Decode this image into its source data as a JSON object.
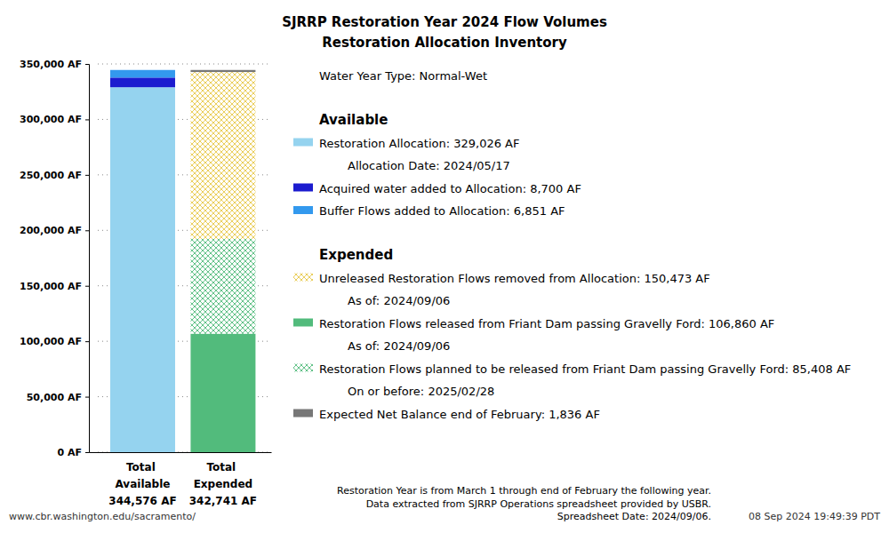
{
  "chart_data": {
    "type": "bar",
    "stacked": true,
    "grid": true,
    "title": "SJRRP Restoration Year 2024 Flow Volumes",
    "subtitle": "Restoration Allocation Inventory",
    "water_year_type": "Water Year Type: Normal-Wet",
    "categories": [
      "Total Available",
      "Total Expended"
    ],
    "total_labels": [
      "344,576 AF",
      "342,741 AF"
    ],
    "ylim": [
      0,
      350000
    ],
    "yticks": [
      {
        "value": 0,
        "label": "0 AF"
      },
      {
        "value": 50000,
        "label": "50,000 AF"
      },
      {
        "value": 100000,
        "label": "100,000 AF"
      },
      {
        "value": 150000,
        "label": "150,000 AF"
      },
      {
        "value": 200000,
        "label": "200,000 AF"
      },
      {
        "value": 250000,
        "label": "250,000 AF"
      },
      {
        "value": 300000,
        "label": "300,000 AF"
      },
      {
        "value": 350000,
        "label": "350,000 AF"
      }
    ],
    "series": [
      {
        "name": "Restoration Allocation: 329,026 AF",
        "note": "Allocation Date: 2024/05/17",
        "color": "#95d3ef",
        "values": [
          329026,
          null
        ]
      },
      {
        "name": "Acquired water added to Allocation: 8,700 AF",
        "color": "#1c1ccf",
        "values": [
          8700,
          null
        ]
      },
      {
        "name": "Buffer Flows added to Allocation: 6,851 AF",
        "color": "#3399ee",
        "values": [
          6851,
          null
        ]
      },
      {
        "name": "Restoration Flows released from Friant Dam passing Gravelly Ford: 106,860 AF",
        "note": "As of: 2024/09/06",
        "color": "#52bb7c",
        "values": [
          null,
          106860
        ]
      },
      {
        "name": "Restoration Flows planned to be released from Friant Dam passing Gravelly Ford: 85,408 AF",
        "note": "On or before: 2025/02/28",
        "color": "#52bb7c",
        "marker": "cross-hatch",
        "values": [
          null,
          85408
        ]
      },
      {
        "name": "Unreleased Restoration Flows removed from Allocation: 150,473 AF",
        "note": "As of: 2024/09/06",
        "color": "#e8c84a",
        "marker": "cross-hatch",
        "values": [
          null,
          150473
        ]
      },
      {
        "name": "Expected Net Balance end of February: 1,836 AF",
        "color": "#777777",
        "values": [
          null,
          1836
        ]
      }
    ],
    "legend_groups": [
      {
        "title": "Available",
        "series": [
          0,
          1,
          2
        ]
      },
      {
        "title": "Expended",
        "series": [
          5,
          3,
          4,
          6
        ]
      }
    ],
    "footnotes": [
      "Restoration Year is from March 1 through end of February the following year.",
      "Data extracted from SJRRP Operations spreadsheet provided by USBR.",
      "Spreadsheet Date: 2024/09/06."
    ],
    "source": "www.cbr.washington.edu/sacramento/",
    "timestamp": "08 Sep 2024 19:49:39 PDT"
  }
}
